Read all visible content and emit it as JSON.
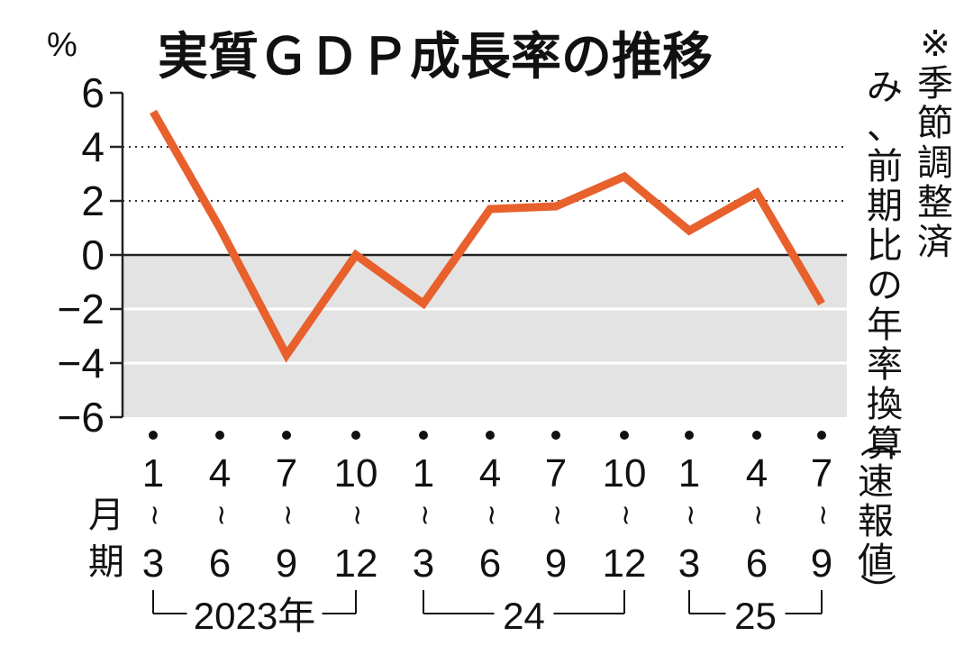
{
  "chart_data": {
    "type": "line",
    "title": "実質ＧＤＰ成長率の推移",
    "ylabel": "%",
    "ylim": [
      -6,
      6
    ],
    "yticks": [
      6,
      4,
      2,
      0,
      -2,
      -4,
      -6
    ],
    "ytick_labels": [
      "6",
      "4",
      "2",
      "0",
      "−2",
      "−4",
      "−6"
    ],
    "grid": "dotted lines at 2 and 4; negative region shaded gray",
    "negative_fill_color": "#e3e3e3",
    "line_color": "#e8602c",
    "x_month_label": "月期",
    "quarters": [
      {
        "start": "1",
        "end": "3"
      },
      {
        "start": "4",
        "end": "6"
      },
      {
        "start": "7",
        "end": "9"
      },
      {
        "start": "10",
        "end": "12"
      },
      {
        "start": "1",
        "end": "3"
      },
      {
        "start": "4",
        "end": "6"
      },
      {
        "start": "7",
        "end": "9"
      },
      {
        "start": "10",
        "end": "12"
      },
      {
        "start": "1",
        "end": "3"
      },
      {
        "start": "4",
        "end": "6"
      },
      {
        "start": "7",
        "end": "9"
      }
    ],
    "years": [
      {
        "label": "2023年",
        "from": 0,
        "to": 3
      },
      {
        "label": "24",
        "from": 4,
        "to": 7
      },
      {
        "label": "25",
        "from": 8,
        "to": 10
      }
    ],
    "series": [
      {
        "values": [
          5.3,
          1.0,
          -3.7,
          0.0,
          -1.8,
          1.7,
          1.8,
          2.9,
          0.9,
          2.3,
          -1.8
        ]
      }
    ],
    "note": "※季節調整済み、前期比の年率換算",
    "last_point_note": "（速報値）"
  }
}
